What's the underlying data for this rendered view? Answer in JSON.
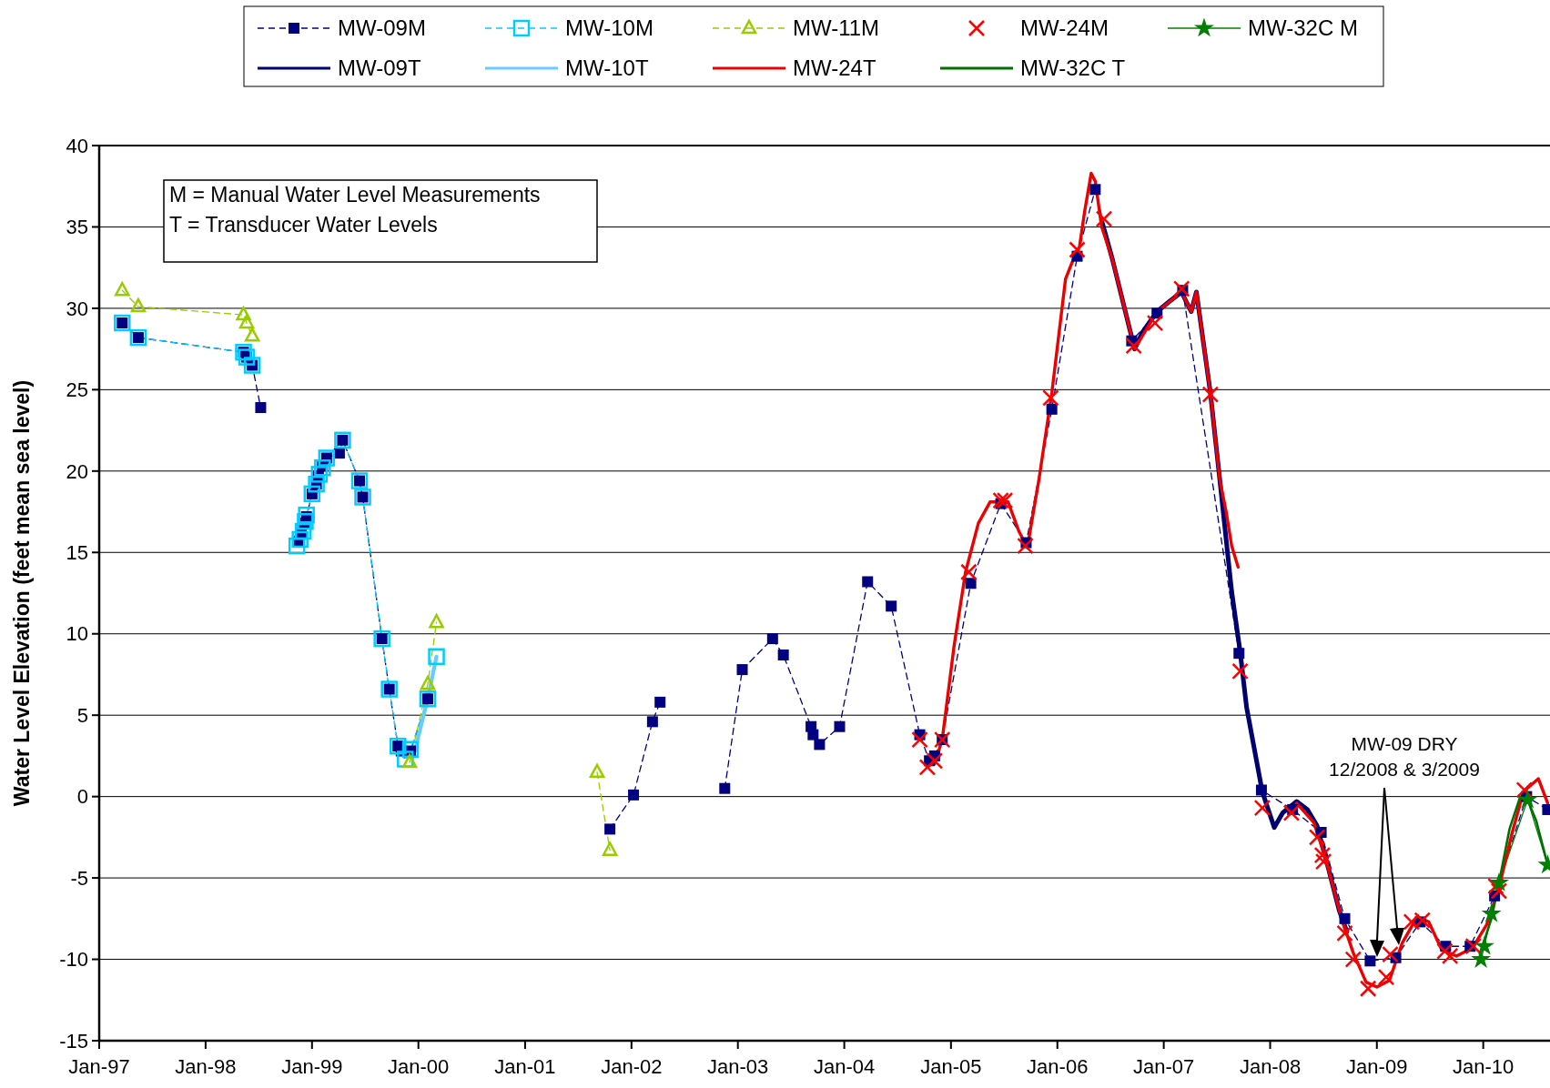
{
  "chart_data": {
    "type": "line",
    "ylabel": "Water Level Elevation (feet mean sea level)",
    "xlim": [
      "1997-01-01",
      "2010-08-18"
    ],
    "ylim": [
      -15,
      40
    ],
    "xticks": [
      {
        "value": "1997-01",
        "label": "Jan-97"
      },
      {
        "value": "1998-01",
        "label": "Jan-98"
      },
      {
        "value": "1999-01",
        "label": "Jan-99"
      },
      {
        "value": "2000-01",
        "label": "Jan-00"
      },
      {
        "value": "2001-01",
        "label": "Jan-01"
      },
      {
        "value": "2002-01",
        "label": "Jan-02"
      },
      {
        "value": "2003-01",
        "label": "Jan-03"
      },
      {
        "value": "2004-01",
        "label": "Jan-04"
      },
      {
        "value": "2005-01",
        "label": "Jan-05"
      },
      {
        "value": "2006-01",
        "label": "Jan-06"
      },
      {
        "value": "2007-01",
        "label": "Jan-07"
      },
      {
        "value": "2008-01",
        "label": "Jan-08"
      },
      {
        "value": "2009-01",
        "label": "Jan-09"
      },
      {
        "value": "2010-01",
        "label": "Jan-10"
      }
    ],
    "yticks": [
      -15,
      -10,
      -5,
      0,
      5,
      10,
      15,
      20,
      25,
      30,
      35,
      40
    ],
    "grid": "y",
    "legend": "top",
    "annotations": [
      "M = Manual Water Level Measurements",
      "T = Transducer Water Levels",
      "MW-09 DRY\n12/2008 & 3/2009"
    ],
    "series": [
      {
        "name": "MW-09M",
        "type": "line",
        "color": "#000080",
        "marker": "square",
        "line_style": "dashed",
        "x": [
          "1997-03-21",
          "1997-05-15",
          "1998-05-11",
          "1998-05-22",
          "1998-06-10",
          "1998-07-09",
          "1998-09-01",
          "1998-11-17",
          "1998-11-25",
          "1998-12-05",
          "1998-12-13",
          "1999-01-01",
          "1999-01-16",
          "1999-01-23",
          "1999-02-06",
          "1999-02-20",
          "1999-04-05",
          "1999-04-16",
          "1999-06-13",
          "1999-06-24",
          "1999-08-29",
          "1999-09-23",
          "1999-10-23",
          "1999-11-03",
          "1999-11-28",
          "1999-12-05",
          "2000-02-02",
          "2001-01-01",
          "2001-10-19",
          "2002-01-08",
          "2002-03-14",
          "2002-04-09",
          "2002-08-01",
          "2002-11-17",
          "2003-01-16",
          "2003-04-30",
          "2003-06-06",
          "2003-09-09",
          "2003-09-16",
          "2003-10-08",
          "2003-12-16",
          "2004-03-21",
          "2004-06-10",
          "2004-09-16",
          "2004-10-19",
          "2004-11-06",
          "2004-12-02",
          "2005-03-10",
          "2005-06-21",
          "2005-09-16",
          "2005-12-13",
          "2006-03-10",
          "2006-05-11",
          "2006-09-13",
          "2006-12-09",
          "2007-03-07",
          "2007-09-16",
          "2007-12-02",
          "2008-03-18",
          "2008-06-24",
          "2008-09-13",
          "2008-12-09",
          "2009-03-07",
          "2009-05-30",
          "2009-08-25",
          "2009-11-17",
          "2010-02-09",
          "2010-05-30",
          "2010-08-10"
        ],
        "values": [
          29.1,
          28.2,
          27.3,
          27.0,
          26.5,
          23.9,
          null,
          15.7,
          16.2,
          16.8,
          17.2,
          18.6,
          19.2,
          19.7,
          20.3,
          20.8,
          21.1,
          21.9,
          19.4,
          18.4,
          9.7,
          6.6,
          3.1,
          2.8,
          2.7,
          2.8,
          6.0,
          null,
          -2.0,
          0.1,
          4.6,
          5.8,
          null,
          0.5,
          7.8,
          9.7,
          8.7,
          4.3,
          3.8,
          3.2,
          4.3,
          13.2,
          11.7,
          3.8,
          2.2,
          2.5,
          3.5,
          13.1,
          18.0,
          15.6,
          23.8,
          33.2,
          37.3,
          28.0,
          29.7,
          31.1,
          8.8,
          0.4,
          -0.8,
          -2.2,
          -7.5,
          -10.1,
          -9.9,
          -7.7,
          -9.2,
          -9.2,
          -6.1,
          0.0,
          -0.8
        ]
      },
      {
        "name": "MW-10M",
        "type": "line",
        "color": "#00ccff",
        "marker": "square",
        "line_style": "dashed",
        "x": [
          "1997-03-21",
          "1997-05-15",
          "1998-05-11",
          "1998-05-22",
          "1998-06-10",
          "1998-09-01",
          "1998-11-10",
          "1998-11-21",
          "1998-12-02",
          "1998-12-09",
          "1998-12-13",
          "1999-01-01",
          "1999-01-16",
          "1999-01-26",
          "1999-02-06",
          "1999-02-20",
          "1999-04-16",
          "1999-06-13",
          "1999-06-24",
          "1999-08-29",
          "1999-09-23",
          "1999-10-23",
          "1999-11-17",
          "1999-12-05",
          "2000-02-02",
          "2000-03-03"
        ],
        "values": [
          29.1,
          28.2,
          27.3,
          27.0,
          26.5,
          null,
          15.4,
          15.8,
          16.3,
          16.9,
          17.3,
          18.6,
          19.2,
          19.8,
          20.2,
          20.8,
          21.9,
          19.4,
          18.4,
          9.7,
          6.6,
          3.1,
          2.3,
          2.9,
          6.0,
          8.6
        ]
      },
      {
        "name": "MW-11M",
        "type": "line",
        "color": "#99cc00",
        "marker": "triangle",
        "line_style": "dashed",
        "x": [
          "1997-03-21",
          "1997-05-15",
          "1998-05-11",
          "1998-05-22",
          "1998-06-10",
          "1999-01-01",
          "1999-12-02",
          "2000-02-02",
          "2000-03-03",
          "2001-01-01",
          "2001-09-05",
          "2001-10-19"
        ],
        "values": [
          31.1,
          30.1,
          29.6,
          29.1,
          28.3,
          null,
          2.1,
          6.9,
          10.7,
          null,
          1.5,
          -3.3
        ]
      },
      {
        "name": "MW-24M",
        "type": "scatter",
        "color": "#ff0000",
        "marker": "cross",
        "x": [
          "2004-09-16",
          "2004-10-12",
          "2004-11-06",
          "2004-12-02",
          "2005-03-03",
          "2005-06-21",
          "2005-07-05",
          "2005-09-13",
          "2005-12-09",
          "2006-03-10",
          "2006-06-10",
          "2006-09-20",
          "2006-12-02",
          "2007-03-03",
          "2007-06-10",
          "2007-09-20",
          "2007-12-05",
          "2008-03-14",
          "2008-06-10",
          "2008-06-28",
          "2008-07-02",
          "2008-09-13",
          "2008-10-12",
          "2008-12-02",
          "2009-02-02",
          "2009-02-16",
          "2009-04-30",
          "2009-06-06",
          "2009-08-22",
          "2009-09-09",
          "2009-11-28",
          "2010-02-13",
          "2010-02-24",
          "2010-05-22"
        ],
        "values": [
          3.5,
          1.8,
          2.2,
          3.5,
          13.8,
          18.2,
          18.2,
          15.4,
          24.5,
          33.6,
          35.5,
          27.7,
          29.1,
          31.2,
          24.7,
          7.7,
          -0.7,
          -1.0,
          -2.5,
          -3.6,
          -4.0,
          -8.4,
          -10.0,
          -11.8,
          -11.1,
          -9.7,
          -7.7,
          -7.6,
          -9.5,
          -9.8,
          -9.2,
          -5.5,
          -5.8,
          0.4
        ]
      },
      {
        "name": "MW-32C M",
        "type": "line",
        "color": "#008000",
        "marker": "star",
        "line_style": "solid",
        "x": [
          "2009-12-24",
          "2010-01-05",
          "2010-01-29",
          "2010-02-24",
          "2010-06-02",
          "2010-08-10"
        ],
        "values": [
          -10.0,
          -9.2,
          -7.2,
          -5.3,
          -0.2,
          -4.2
        ]
      },
      {
        "name": "MW-09T",
        "type": "line",
        "color": "#000070",
        "line_style": "solid",
        "x": [
          "2006-06-02",
          "2006-07-09",
          "2006-09-23",
          "2006-10-19",
          "2006-12-09",
          "2007-01-19",
          "2007-03-03",
          "2007-04-05",
          "2007-04-23",
          "2007-06-10",
          "2007-07-12",
          "2007-08-22",
          "2007-09-20",
          "2007-10-12",
          "2007-12-05",
          "2008-01-15",
          "2008-02-13",
          "2008-04-01",
          "2008-05-08",
          "2008-06-10",
          "2008-07-20",
          "2008-08-25",
          "2008-09-20"
        ],
        "values": [
          35.4,
          33.0,
          27.5,
          28.5,
          29.8,
          30.4,
          31.0,
          29.8,
          31.0,
          24.8,
          19.5,
          12.6,
          8.9,
          5.5,
          0.3,
          -1.9,
          -1.0,
          -0.3,
          -0.8,
          -1.8,
          -4.5,
          -7.0,
          -8.3
        ]
      },
      {
        "name": "MW-10T",
        "type": "line",
        "color": "#66ccff",
        "line_style": "solid",
        "x": [
          "1999-11-25",
          "1999-12-20",
          "2000-01-12",
          "2000-02-02",
          "2000-03-03"
        ],
        "values": [
          2.5,
          2.8,
          4.5,
          6.0,
          8.6
        ]
      },
      {
        "name": "MW-24T",
        "type": "line",
        "color": "#ee0000",
        "line_style": "solid",
        "x": [
          "2004-11-06",
          "2004-12-02",
          "2005-01-12",
          "2005-02-20",
          "2005-04-05",
          "2005-05-15",
          "2005-07-16",
          "2005-08-22",
          "2005-09-20",
          "2005-10-30",
          "2005-12-13",
          "2006-01-29",
          "2006-02-20",
          "2006-03-18",
          "2006-04-05",
          "2006-04-27",
          "2006-05-11",
          "2006-06-02",
          "2006-07-09",
          "2006-09-23",
          "2006-12-09",
          "2007-03-03",
          "2007-04-05",
          "2007-04-23",
          "2007-06-10",
          "2007-07-12",
          "2007-08-03",
          "2007-08-22",
          "2007-09-13",
          "2007-11-01",
          "2008-03-18",
          "2008-04-01",
          "2008-05-30",
          "2008-07-09",
          "2008-09-02",
          "2008-10-12",
          "2008-11-25",
          "2009-01-01",
          "2009-02-13",
          "2009-03-29",
          "2009-05-19",
          "2009-06-28",
          "2009-08-11",
          "2009-10-01",
          "2009-11-25",
          "2010-01-12",
          "2010-02-24",
          "2010-04-09",
          "2010-05-19",
          "2010-07-09",
          "2010-08-10"
        ],
        "values": [
          2.0,
          3.5,
          9.3,
          13.8,
          16.8,
          18.1,
          18.1,
          16.3,
          15.3,
          19.5,
          24.8,
          31.8,
          32.8,
          33.8,
          36.0,
          38.3,
          37.8,
          35.0,
          33.0,
          27.5,
          29.8,
          31.0,
          29.8,
          31.0,
          24.8,
          19.5,
          17.5,
          15.4,
          14.1,
          null,
          -0.9,
          -0.4,
          -1.6,
          -3.8,
          -7.5,
          -9.6,
          -11.4,
          -11.7,
          -11.3,
          -9.0,
          -7.4,
          -7.7,
          -9.4,
          -9.8,
          -9.3,
          -7.9,
          -5.6,
          -2.3,
          0.3,
          1.1,
          -0.4
        ]
      },
      {
        "name": "MW-32C T",
        "type": "line",
        "color": "#007000",
        "line_style": "solid",
        "x": [
          "2009-12-24",
          "2010-01-29",
          "2010-02-24",
          "2010-04-01",
          "2010-05-08",
          "2010-06-02",
          "2010-07-02",
          "2010-08-10"
        ],
        "values": [
          -9.5,
          -7.5,
          -5.3,
          -2.0,
          0.0,
          -0.2,
          -1.5,
          -4.2
        ]
      }
    ]
  }
}
